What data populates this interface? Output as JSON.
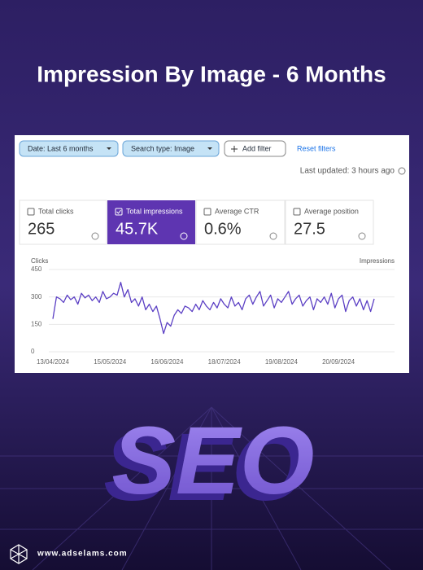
{
  "header": {
    "title": "Impression By Image - 6 Months"
  },
  "filters": {
    "date": "Date: Last 6 months",
    "search_type": "Search type: Image",
    "add": "Add filter",
    "reset": "Reset filters"
  },
  "last_updated": "Last updated: 3 hours ago",
  "metrics": [
    {
      "label": "Total clicks",
      "value": "265"
    },
    {
      "label": "Total impressions",
      "value": "45.7K"
    },
    {
      "label": "Average CTR",
      "value": "0.6%"
    },
    {
      "label": "Average position",
      "value": "27.5"
    }
  ],
  "chart_data": {
    "type": "line",
    "ylabel": "Clicks",
    "ylabel_right": "Impressions",
    "color": "#5b3fc4",
    "categories": [
      "13/04/2024",
      null,
      null,
      null,
      null,
      null,
      null,
      null,
      null,
      null,
      null,
      null,
      null,
      null,
      null,
      null,
      "15/05/2024",
      null,
      null,
      null,
      null,
      null,
      null,
      null,
      null,
      null,
      null,
      null,
      null,
      null,
      null,
      null,
      "16/06/2024",
      null,
      null,
      null,
      null,
      null,
      null,
      null,
      null,
      null,
      null,
      null,
      null,
      null,
      null,
      null,
      "18/07/2024",
      null,
      null,
      null,
      null,
      null,
      null,
      null,
      null,
      null,
      null,
      null,
      null,
      null,
      null,
      null,
      "19/08/2024",
      null,
      null,
      null,
      null,
      null,
      null,
      null,
      null,
      null,
      null,
      null,
      null,
      null,
      null,
      null,
      "20/09/2024",
      null,
      null,
      null,
      null,
      null,
      null,
      null,
      null,
      null,
      null
    ],
    "values": [
      180,
      300,
      290,
      270,
      310,
      285,
      300,
      260,
      320,
      295,
      310,
      280,
      300,
      270,
      330,
      290,
      300,
      320,
      310,
      380,
      300,
      340,
      270,
      290,
      250,
      300,
      230,
      260,
      220,
      250,
      180,
      100,
      160,
      140,
      200,
      230,
      210,
      250,
      240,
      220,
      260,
      230,
      280,
      250,
      230,
      270,
      240,
      290,
      260,
      240,
      300,
      250,
      270,
      230,
      290,
      310,
      260,
      300,
      330,
      250,
      280,
      310,
      240,
      290,
      270,
      300,
      330,
      260,
      290,
      310,
      250,
      280,
      300,
      230,
      290,
      270,
      300,
      260,
      320,
      240,
      290,
      310,
      220,
      280,
      300,
      250,
      290,
      230,
      280,
      220,
      290
    ],
    "ylim": [
      0,
      450
    ],
    "yticks": [
      0,
      150,
      300,
      450
    ],
    "grid": true
  },
  "graphic": {
    "text": "SEO"
  },
  "footer": {
    "url": "www.adselams.com"
  }
}
